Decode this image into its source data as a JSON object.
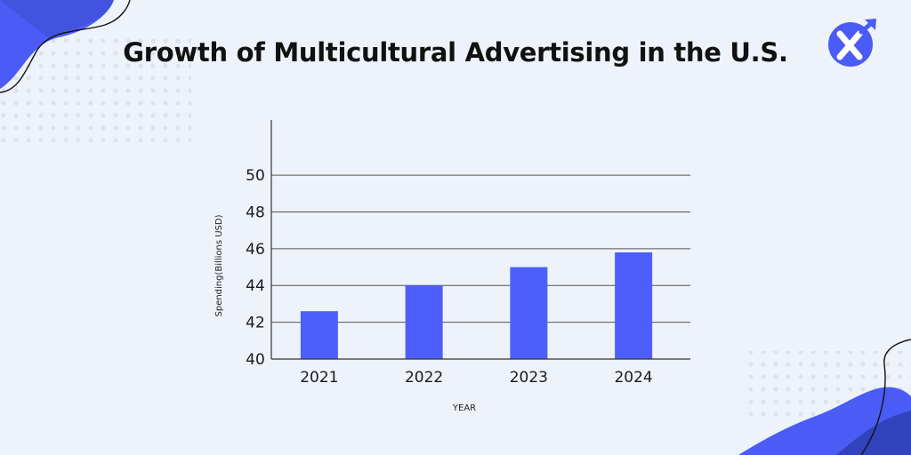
{
  "colors": {
    "background": "#eef2fa",
    "bar": "#4d5ffb",
    "accent": "#4a5cf5",
    "accent_dark": "#2b3aa8",
    "grid": "#555555"
  },
  "logo": {
    "icon": "x-arrow-logo-icon"
  },
  "chart_data": {
    "type": "bar",
    "title": "Growth of Multicultural Advertising in the U.S.",
    "categories": [
      "2021",
      "2022",
      "2023",
      "2024"
    ],
    "values": [
      42.6,
      44.0,
      45.0,
      45.8
    ],
    "xlabel": "YEAR",
    "ylabel": "Spending(Billions USD)",
    "ylim": [
      40,
      53
    ],
    "yticks": [
      40,
      42,
      44,
      46,
      48,
      50
    ],
    "grid": true
  }
}
